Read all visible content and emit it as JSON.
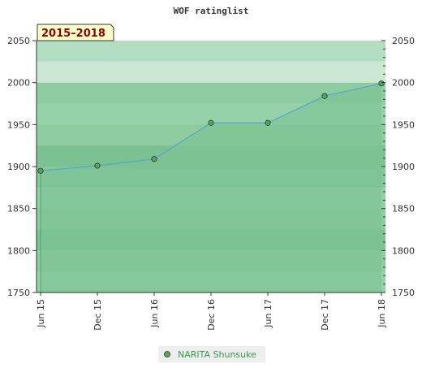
{
  "chart_data": {
    "type": "area",
    "title": "WOF ratinglist",
    "period_label": "2015–2018",
    "xlabel": "",
    "ylabel": "",
    "ylim": [
      1750,
      2050
    ],
    "y_ticks": [
      1750,
      1800,
      1850,
      1900,
      1950,
      2000,
      2050
    ],
    "categories": [
      "Jun 15",
      "Dec 15",
      "Jun 16",
      "Dec 16",
      "Jun 17",
      "Dec 17",
      "Jun 18"
    ],
    "series": [
      {
        "name": "NARITA Shunsuke",
        "values": [
          1895,
          1901,
          1909,
          1952,
          1952,
          1984,
          1999
        ]
      }
    ],
    "grid": true,
    "legend_position": "bottom-center",
    "colors": {
      "band_below": "#8ccca0",
      "band_above": "#b6dfc2",
      "area_fill": "#7cc394",
      "line": "#5aa3cf",
      "point": "#4ca85c",
      "period_bg": "#ffffc8"
    }
  }
}
